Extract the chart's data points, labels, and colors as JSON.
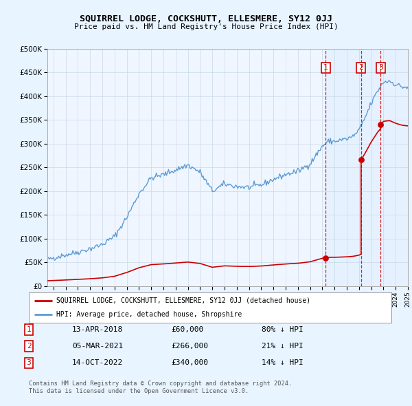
{
  "title": "SQUIRREL LODGE, COCKSHUTT, ELLESMERE, SY12 0JJ",
  "subtitle": "Price paid vs. HM Land Registry's House Price Index (HPI)",
  "legend_entry1": "SQUIRREL LODGE, COCKSHUTT, ELLESMERE, SY12 0JJ (detached house)",
  "legend_entry2": "HPI: Average price, detached house, Shropshire",
  "footer1": "Contains HM Land Registry data © Crown copyright and database right 2024.",
  "footer2": "This data is licensed under the Open Government Licence v3.0.",
  "sales": [
    {
      "num": 1,
      "date": "13-APR-2018",
      "price": 60000,
      "pct": "80% ↓ HPI",
      "year": 2018.28
    },
    {
      "num": 2,
      "date": "05-MAR-2021",
      "price": 266000,
      "pct": "21% ↓ HPI",
      "year": 2021.17
    },
    {
      "num": 3,
      "date": "14-OCT-2022",
      "price": 340000,
      "pct": "14% ↓ HPI",
      "year": 2022.78
    }
  ],
  "ylim": [
    0,
    500000
  ],
  "xlim": [
    1995.5,
    2025.0
  ],
  "hpi_color": "#5b9bd5",
  "price_color": "#cc0000",
  "vline_color": "#cc0000",
  "shade_color": "#ddeeff",
  "background_color": "#e8f4ff",
  "plot_bg": "#f0f6ff",
  "grid_color": "#c8d8e8"
}
